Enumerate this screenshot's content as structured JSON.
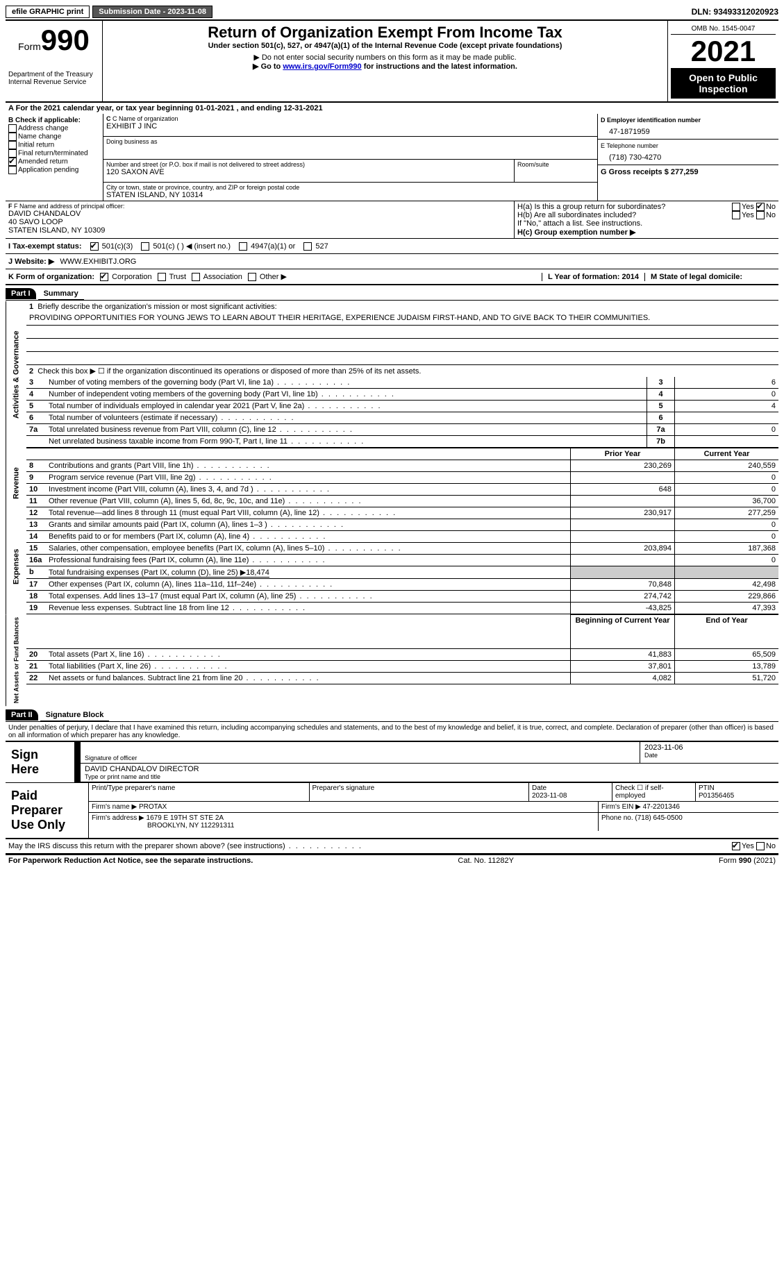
{
  "topbar": {
    "efile": "efile GRAPHIC print",
    "submission_label": "Submission Date - 2023-11-08",
    "dln_label": "DLN: 93493312020923"
  },
  "header": {
    "form_word": "Form",
    "form_num": "990",
    "dept": "Department of the Treasury",
    "irs": "Internal Revenue Service",
    "title": "Return of Organization Exempt From Income Tax",
    "subtitle": "Under section 501(c), 527, or 4947(a)(1) of the Internal Revenue Code (except private foundations)",
    "note1": "Do not enter social security numbers on this form as it may be made public.",
    "note2_pre": "Go to ",
    "note2_link": "www.irs.gov/Form990",
    "note2_post": " for instructions and the latest information.",
    "omb": "OMB No. 1545-0047",
    "year": "2021",
    "inspection": "Open to Public Inspection"
  },
  "section_a": "For the 2021 calendar year, or tax year beginning 01-01-2021   , and ending 12-31-2021",
  "col_b": {
    "label": "B Check if applicable:",
    "addr": "Address change",
    "name": "Name change",
    "initial": "Initial return",
    "final": "Final return/terminated",
    "amended": "Amended return",
    "app": "Application pending"
  },
  "col_c": {
    "name_label": "C Name of organization",
    "name_val": "EXHIBIT J INC",
    "dba_label": "Doing business as",
    "street_label": "Number and street (or P.O. box if mail is not delivered to street address)",
    "room_label": "Room/suite",
    "street_val": "120 SAXON AVE",
    "city_label": "City or town, state or province, country, and ZIP or foreign postal code",
    "city_val": "STATEN ISLAND, NY  10314"
  },
  "col_d": {
    "ein_label": "D Employer identification number",
    "ein_val": "47-1871959",
    "tel_label": "E Telephone number",
    "tel_val": "(718) 730-4270",
    "gross_label": "G Gross receipts $ 277,259"
  },
  "row_f": {
    "f_label": "F Name and address of principal officer:",
    "f_val1": "DAVID CHANDALOV",
    "f_val2": "40 SAVO LOOP",
    "f_val3": "STATEN ISLAND, NY  10309",
    "ha": "H(a)  Is this a group return for subordinates?",
    "hb": "H(b)  Are all subordinates included?",
    "hb_note": "If \"No,\" attach a list. See instructions.",
    "hc": "H(c)  Group exemption number ▶",
    "yes": "Yes",
    "no": "No"
  },
  "row_i": {
    "label": "I  Tax-exempt status:",
    "c3": "501(c)(3)",
    "c_other": "501(c) (  ) ◀ (insert no.)",
    "c4947": "4947(a)(1) or",
    "c527": "527"
  },
  "row_j": {
    "label": "J  Website: ▶",
    "val": "WWW.EXHIBITJ.ORG"
  },
  "row_k": {
    "label": "K Form of organization:",
    "corp": "Corporation",
    "trust": "Trust",
    "assoc": "Association",
    "other": "Other ▶",
    "l_label": "L Year of formation: 2014",
    "m_label": "M State of legal domicile:"
  },
  "part1": {
    "header": "Part I",
    "title": "Summary",
    "vlabels": {
      "activities": "Activities & Governance",
      "revenue": "Revenue",
      "expenses": "Expenses",
      "net": "Net Assets or Fund Balances"
    },
    "line1_label": "Briefly describe the organization's mission or most significant activities:",
    "line1_val": "PROVIDING OPPORTUNITIES FOR YOUNG JEWS TO LEARN ABOUT THEIR HERITAGE, EXPERIENCE JUDAISM FIRST-HAND, AND TO GIVE BACK TO THEIR COMMUNITIES.",
    "line2": "Check this box ▶ ☐  if the organization discontinued its operations or disposed of more than 25% of its net assets.",
    "rows": [
      {
        "n": "3",
        "t": "Number of voting members of the governing body (Part VI, line 1a)",
        "box": "3",
        "v": "6"
      },
      {
        "n": "4",
        "t": "Number of independent voting members of the governing body (Part VI, line 1b)",
        "box": "4",
        "v": "0"
      },
      {
        "n": "5",
        "t": "Total number of individuals employed in calendar year 2021 (Part V, line 2a)",
        "box": "5",
        "v": "4"
      },
      {
        "n": "6",
        "t": "Total number of volunteers (estimate if necessary)",
        "box": "6",
        "v": ""
      },
      {
        "n": "7a",
        "t": "Total unrelated business revenue from Part VIII, column (C), line 12",
        "box": "7a",
        "v": "0"
      },
      {
        "n": "",
        "t": "Net unrelated business taxable income from Form 990-T, Part I, line 11",
        "box": "7b",
        "v": ""
      }
    ],
    "col_prior": "Prior Year",
    "col_current": "Current Year",
    "rev_rows": [
      {
        "n": "8",
        "t": "Contributions and grants (Part VIII, line 1h)",
        "p": "230,269",
        "c": "240,559"
      },
      {
        "n": "9",
        "t": "Program service revenue (Part VIII, line 2g)",
        "p": "",
        "c": "0"
      },
      {
        "n": "10",
        "t": "Investment income (Part VIII, column (A), lines 3, 4, and 7d )",
        "p": "648",
        "c": "0"
      },
      {
        "n": "11",
        "t": "Other revenue (Part VIII, column (A), lines 5, 6d, 8c, 9c, 10c, and 11e)",
        "p": "",
        "c": "36,700"
      },
      {
        "n": "12",
        "t": "Total revenue—add lines 8 through 11 (must equal Part VIII, column (A), line 12)",
        "p": "230,917",
        "c": "277,259"
      }
    ],
    "exp_rows": [
      {
        "n": "13",
        "t": "Grants and similar amounts paid (Part IX, column (A), lines 1–3 )",
        "p": "",
        "c": "0"
      },
      {
        "n": "14",
        "t": "Benefits paid to or for members (Part IX, column (A), line 4)",
        "p": "",
        "c": "0"
      },
      {
        "n": "15",
        "t": "Salaries, other compensation, employee benefits (Part IX, column (A), lines 5–10)",
        "p": "203,894",
        "c": "187,368"
      },
      {
        "n": "16a",
        "t": "Professional fundraising fees (Part IX, column (A), line 11e)",
        "p": "",
        "c": "0"
      }
    ],
    "line16b": "Total fundraising expenses (Part IX, column (D), line 25) ▶18,474",
    "exp_rows2": [
      {
        "n": "17",
        "t": "Other expenses (Part IX, column (A), lines 11a–11d, 11f–24e)",
        "p": "70,848",
        "c": "42,498"
      },
      {
        "n": "18",
        "t": "Total expenses. Add lines 13–17 (must equal Part IX, column (A), line 25)",
        "p": "274,742",
        "c": "229,866"
      },
      {
        "n": "19",
        "t": "Revenue less expenses. Subtract line 18 from line 12",
        "p": "-43,825",
        "c": "47,393"
      }
    ],
    "col_begin": "Beginning of Current Year",
    "col_end": "End of Year",
    "net_rows": [
      {
        "n": "20",
        "t": "Total assets (Part X, line 16)",
        "p": "41,883",
        "c": "65,509"
      },
      {
        "n": "21",
        "t": "Total liabilities (Part X, line 26)",
        "p": "37,801",
        "c": "13,789"
      },
      {
        "n": "22",
        "t": "Net assets or fund balances. Subtract line 21 from line 20",
        "p": "4,082",
        "c": "51,720"
      }
    ]
  },
  "part2": {
    "header": "Part II",
    "title": "Signature Block",
    "declaration": "Under penalties of perjury, I declare that I have examined this return, including accompanying schedules and statements, and to the best of my knowledge and belief, it is true, correct, and complete. Declaration of preparer (other than officer) is based on all information of which preparer has any knowledge.",
    "sign_here": "Sign Here",
    "sig_officer": "Signature of officer",
    "sig_date": "Date",
    "sig_date_val": "2023-11-06",
    "name_title": "DAVID CHANDALOV  DIRECTOR",
    "name_title_label": "Type or print name and title",
    "paid_prep": "Paid Preparer Use Only",
    "prep_name_label": "Print/Type preparer's name",
    "prep_sig_label": "Preparer's signature",
    "prep_date_label": "Date",
    "prep_date_val": "2023-11-08",
    "prep_check": "Check ☐ if self-employed",
    "ptin_label": "PTIN",
    "ptin_val": "P01356465",
    "firm_name_label": "Firm's name    ▶",
    "firm_name_val": "PROTAX",
    "firm_ein_label": "Firm's EIN ▶ 47-2201346",
    "firm_addr_label": "Firm's address ▶",
    "firm_addr_val1": "1679 E 19TH ST STE 2A",
    "firm_addr_val2": "BROOKLYN, NY  112291311",
    "firm_phone": "Phone no. (718) 645-0500"
  },
  "footer": {
    "discuss": "May the IRS discuss this return with the preparer shown above? (see instructions)",
    "yes": "Yes",
    "no": "No",
    "paperwork": "For Paperwork Reduction Act Notice, see the separate instructions.",
    "cat": "Cat. No. 11282Y",
    "form": "Form 990 (2021)"
  }
}
